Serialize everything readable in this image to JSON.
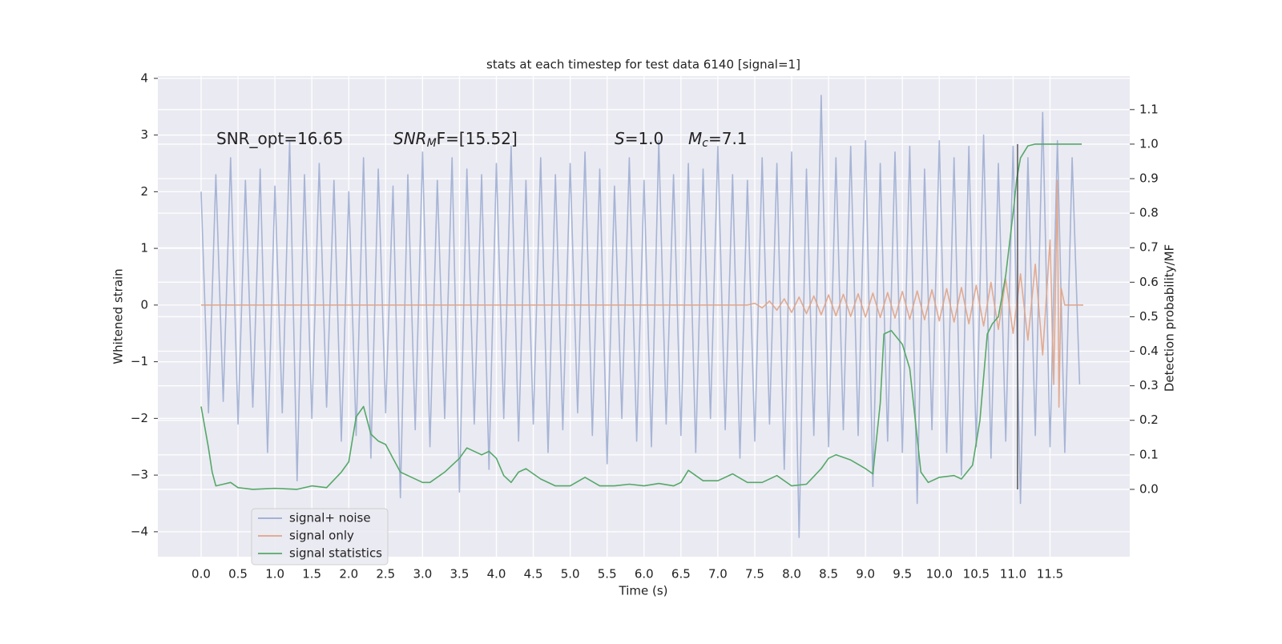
{
  "chart_data": {
    "type": "line",
    "title": "stats at each timestep for test data 6140 [signal=1]",
    "x_label": "Time (s)",
    "y_label": "Whitened strain",
    "y2_label": "Detection probability/MF",
    "xlim": [
      -0.586,
      12.58
    ],
    "ylim": [
      -4.44,
      4.04
    ],
    "y2lim": [
      -0.195,
      1.197
    ],
    "xticks": [
      {
        "value": 0,
        "label": "0.0"
      },
      {
        "value": 0.5,
        "label": "0.5"
      },
      {
        "value": 1,
        "label": "1.0"
      },
      {
        "value": 1.5,
        "label": "1.5"
      },
      {
        "value": 2,
        "label": "2.0"
      },
      {
        "value": 2.5,
        "label": "2.5"
      },
      {
        "value": 3,
        "label": "3.0"
      },
      {
        "value": 3.5,
        "label": "3.5"
      },
      {
        "value": 4,
        "label": "4.0"
      },
      {
        "value": 4.5,
        "label": "4.5"
      },
      {
        "value": 5,
        "label": "5.0"
      },
      {
        "value": 5.5,
        "label": "5.5"
      },
      {
        "value": 6,
        "label": "6.0"
      },
      {
        "value": 6.5,
        "label": "6.5"
      },
      {
        "value": 7,
        "label": "7.0"
      },
      {
        "value": 7.5,
        "label": "7.5"
      },
      {
        "value": 8,
        "label": "8.0"
      },
      {
        "value": 8.5,
        "label": "8.5"
      },
      {
        "value": 9,
        "label": "9.0"
      },
      {
        "value": 9.5,
        "label": "9.5"
      },
      {
        "value": 10,
        "label": "10.0"
      },
      {
        "value": 10.5,
        "label": "10.5"
      },
      {
        "value": 11,
        "label": "11.0"
      },
      {
        "value": 11.5,
        "label": "11.5"
      }
    ],
    "yticks": [
      {
        "value": -4,
        "label": "−4"
      },
      {
        "value": -3,
        "label": "−3"
      },
      {
        "value": -2,
        "label": "−2"
      },
      {
        "value": -1,
        "label": "−1"
      },
      0,
      1,
      2,
      3,
      4
    ],
    "y2ticks": [
      {
        "value": 0,
        "label": "0.0"
      },
      {
        "value": 0.1,
        "label": "0.1"
      },
      {
        "value": 0.2,
        "label": "0.2"
      },
      {
        "value": 0.3,
        "label": "0.3"
      },
      {
        "value": 0.4,
        "label": "0.4"
      },
      {
        "value": 0.5,
        "label": "0.5"
      },
      {
        "value": 0.6,
        "label": "0.6"
      },
      {
        "value": 0.7,
        "label": "0.7"
      },
      {
        "value": 0.8,
        "label": "0.8"
      },
      {
        "value": 0.9,
        "label": "0.9"
      },
      {
        "value": 1.0,
        "label": "1.0"
      },
      {
        "value": 1.1,
        "label": "1.1"
      }
    ],
    "grid": true,
    "legend_loc": "lower left",
    "annotations": [
      {
        "text": "SNR_opt=16.65"
      },
      {
        "base": "SNR",
        "sub": "M",
        "rest": "F=[15.52]"
      },
      {
        "base": "S",
        "rest": "=1.0"
      },
      {
        "base": "M",
        "sub": "c",
        "rest": "=7.1"
      }
    ],
    "vline": {
      "x": 11.06,
      "y2": [
        0,
        1
      ],
      "color": "#333333"
    },
    "series": [
      {
        "name": "signal+ noise",
        "color": "#9aaad0",
        "x": [
          0.0,
          0.1,
          0.2,
          0.3,
          0.4,
          0.5,
          0.6,
          0.7,
          0.8,
          0.9,
          1.0,
          1.1,
          1.2,
          1.3,
          1.4,
          1.5,
          1.6,
          1.7,
          1.8,
          1.9,
          2.0,
          2.1,
          2.2,
          2.3,
          2.4,
          2.5,
          2.6,
          2.7,
          2.8,
          2.9,
          3.0,
          3.1,
          3.2,
          3.3,
          3.4,
          3.5,
          3.6,
          3.7,
          3.8,
          3.9,
          4.0,
          4.1,
          4.2,
          4.3,
          4.4,
          4.5,
          4.6,
          4.7,
          4.8,
          4.9,
          5.0,
          5.1,
          5.2,
          5.3,
          5.4,
          5.5,
          5.6,
          5.7,
          5.8,
          5.9,
          6.0,
          6.1,
          6.2,
          6.3,
          6.4,
          6.5,
          6.6,
          6.7,
          6.8,
          6.9,
          7.0,
          7.1,
          7.2,
          7.3,
          7.4,
          7.5,
          7.6,
          7.7,
          7.8,
          7.9,
          8.0,
          8.1,
          8.2,
          8.3,
          8.4,
          8.5,
          8.6,
          8.7,
          8.8,
          8.9,
          9.0,
          9.1,
          9.2,
          9.3,
          9.4,
          9.5,
          9.6,
          9.7,
          9.8,
          9.9,
          10.0,
          10.1,
          10.2,
          10.3,
          10.4,
          10.5,
          10.6,
          10.7,
          10.8,
          10.9,
          11.0,
          11.1,
          11.2,
          11.3,
          11.4,
          11.5,
          11.6,
          11.7,
          11.8,
          11.9
        ],
        "values": [
          2.0,
          -1.9,
          2.3,
          -1.7,
          2.6,
          -2.1,
          2.2,
          -1.8,
          2.4,
          -2.6,
          2.1,
          -1.9,
          2.9,
          -3.1,
          2.3,
          -2.0,
          2.5,
          -1.8,
          2.2,
          -2.4,
          2.0,
          -2.3,
          2.6,
          -2.7,
          2.4,
          -1.9,
          2.1,
          -3.4,
          2.3,
          -2.2,
          2.7,
          -2.5,
          2.2,
          -2.0,
          2.6,
          -3.3,
          2.4,
          -2.1,
          2.3,
          -2.9,
          2.5,
          -2.0,
          2.8,
          -2.4,
          2.2,
          -2.1,
          2.6,
          -2.6,
          2.3,
          -2.2,
          2.5,
          -1.9,
          2.7,
          -2.3,
          2.4,
          -2.8,
          2.1,
          -2.0,
          2.6,
          -2.4,
          2.2,
          -2.5,
          2.9,
          -2.1,
          2.3,
          -2.3,
          2.5,
          -2.6,
          2.4,
          -2.0,
          2.8,
          -2.2,
          2.3,
          -2.7,
          2.2,
          -2.4,
          2.6,
          -2.1,
          2.5,
          -2.9,
          2.7,
          -4.1,
          2.4,
          -2.3,
          3.7,
          -2.5,
          2.6,
          -2.2,
          2.8,
          -2.3,
          2.9,
          -3.2,
          2.5,
          -2.4,
          2.7,
          -2.6,
          2.8,
          -3.5,
          2.4,
          -2.2,
          2.9,
          -2.6,
          2.6,
          -3.0,
          2.8,
          -2.5,
          3.0,
          -2.7,
          2.5,
          -2.4,
          2.8,
          -3.5,
          2.6,
          -2.3,
          3.4,
          -2.5,
          2.9,
          -2.6,
          2.6,
          -1.4
        ]
      },
      {
        "name": "signal only",
        "color": "#e0a386",
        "x": [
          0.0,
          7.4,
          7.5,
          7.6,
          7.7,
          7.8,
          7.9,
          8.0,
          8.1,
          8.2,
          8.3,
          8.4,
          8.5,
          8.6,
          8.7,
          8.8,
          8.9,
          9.0,
          9.1,
          9.2,
          9.3,
          9.4,
          9.5,
          9.6,
          9.7,
          9.8,
          9.9,
          10.0,
          10.1,
          10.2,
          10.3,
          10.4,
          10.5,
          10.6,
          10.7,
          10.8,
          10.9,
          11.0,
          11.1,
          11.2,
          11.3,
          11.4,
          11.5,
          11.55,
          11.6,
          11.62,
          11.65,
          11.7,
          11.95
        ],
        "values": [
          0.0,
          0.0,
          0.03,
          -0.05,
          0.07,
          -0.09,
          0.11,
          -0.13,
          0.14,
          -0.15,
          0.16,
          -0.17,
          0.18,
          -0.19,
          0.19,
          -0.2,
          0.2,
          -0.21,
          0.21,
          -0.22,
          0.22,
          -0.23,
          0.24,
          -0.25,
          0.25,
          -0.26,
          0.27,
          -0.28,
          0.29,
          -0.3,
          0.31,
          -0.33,
          0.35,
          -0.37,
          0.4,
          -0.43,
          0.46,
          -0.5,
          0.55,
          -0.62,
          0.72,
          -0.88,
          1.15,
          -1.4,
          2.2,
          -1.8,
          0.3,
          0.0,
          0.0
        ]
      },
      {
        "name": "signal statistics",
        "color": "#55a868",
        "axis": "y2",
        "x": [
          0.0,
          0.1,
          0.15,
          0.2,
          0.3,
          0.4,
          0.5,
          0.7,
          1.0,
          1.3,
          1.5,
          1.7,
          1.9,
          2.0,
          2.1,
          2.2,
          2.3,
          2.4,
          2.5,
          2.6,
          2.7,
          2.8,
          3.0,
          3.1,
          3.3,
          3.5,
          3.6,
          3.8,
          3.9,
          4.0,
          4.1,
          4.2,
          4.3,
          4.4,
          4.6,
          4.8,
          5.0,
          5.2,
          5.4,
          5.6,
          5.8,
          6.0,
          6.2,
          6.4,
          6.5,
          6.6,
          6.8,
          7.0,
          7.2,
          7.4,
          7.6,
          7.8,
          8.0,
          8.2,
          8.4,
          8.5,
          8.6,
          8.8,
          9.0,
          9.1,
          9.2,
          9.25,
          9.35,
          9.5,
          9.6,
          9.75,
          9.85,
          10.0,
          10.2,
          10.3,
          10.45,
          10.55,
          10.65,
          10.72,
          10.8,
          10.9,
          11.0,
          11.05,
          11.1,
          11.2,
          11.3,
          11.93
        ],
        "values": [
          0.24,
          0.12,
          0.05,
          0.01,
          0.015,
          0.02,
          0.005,
          0.0,
          0.003,
          0.0,
          0.01,
          0.005,
          0.05,
          0.08,
          0.21,
          0.24,
          0.16,
          0.14,
          0.13,
          0.09,
          0.05,
          0.04,
          0.02,
          0.02,
          0.05,
          0.09,
          0.12,
          0.1,
          0.11,
          0.09,
          0.04,
          0.02,
          0.05,
          0.06,
          0.03,
          0.01,
          0.01,
          0.035,
          0.01,
          0.01,
          0.015,
          0.01,
          0.017,
          0.01,
          0.02,
          0.055,
          0.025,
          0.025,
          0.045,
          0.02,
          0.02,
          0.04,
          0.01,
          0.015,
          0.06,
          0.09,
          0.1,
          0.085,
          0.06,
          0.045,
          0.25,
          0.45,
          0.46,
          0.42,
          0.35,
          0.05,
          0.02,
          0.035,
          0.04,
          0.03,
          0.07,
          0.2,
          0.45,
          0.48,
          0.5,
          0.62,
          0.8,
          0.9,
          0.96,
          0.995,
          1.0,
          1.0
        ]
      }
    ]
  }
}
